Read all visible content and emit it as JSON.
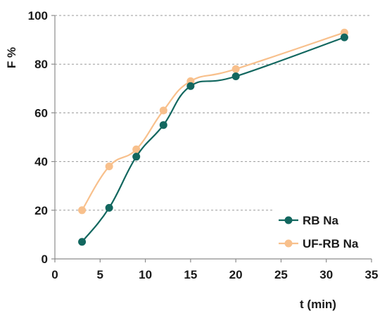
{
  "chart_data": {
    "type": "line",
    "title": "",
    "xlabel": "t (min)",
    "ylabel": "F %",
    "xlim": [
      0,
      35
    ],
    "ylim": [
      0,
      100
    ],
    "xticks": [
      0,
      5,
      10,
      15,
      20,
      25,
      30,
      35
    ],
    "yticks": [
      0,
      20,
      40,
      60,
      80,
      100
    ],
    "grid": "horizontal dashed",
    "legend_position": "bottom-right",
    "series": [
      {
        "name": "UF-RB Na",
        "color": "#f8c08c",
        "smooth": true,
        "points": [
          [
            3,
            20
          ],
          [
            6,
            38
          ],
          [
            9,
            45
          ],
          [
            12,
            61
          ],
          [
            15,
            73
          ],
          [
            20,
            78
          ],
          [
            32,
            93
          ]
        ]
      },
      {
        "name": "RB Na",
        "color": "#12675f",
        "smooth": true,
        "points": [
          [
            3,
            7
          ],
          [
            6,
            21
          ],
          [
            9,
            42
          ],
          [
            12,
            55
          ],
          [
            15,
            71
          ],
          [
            20,
            75
          ],
          [
            32,
            91
          ]
        ]
      }
    ]
  }
}
